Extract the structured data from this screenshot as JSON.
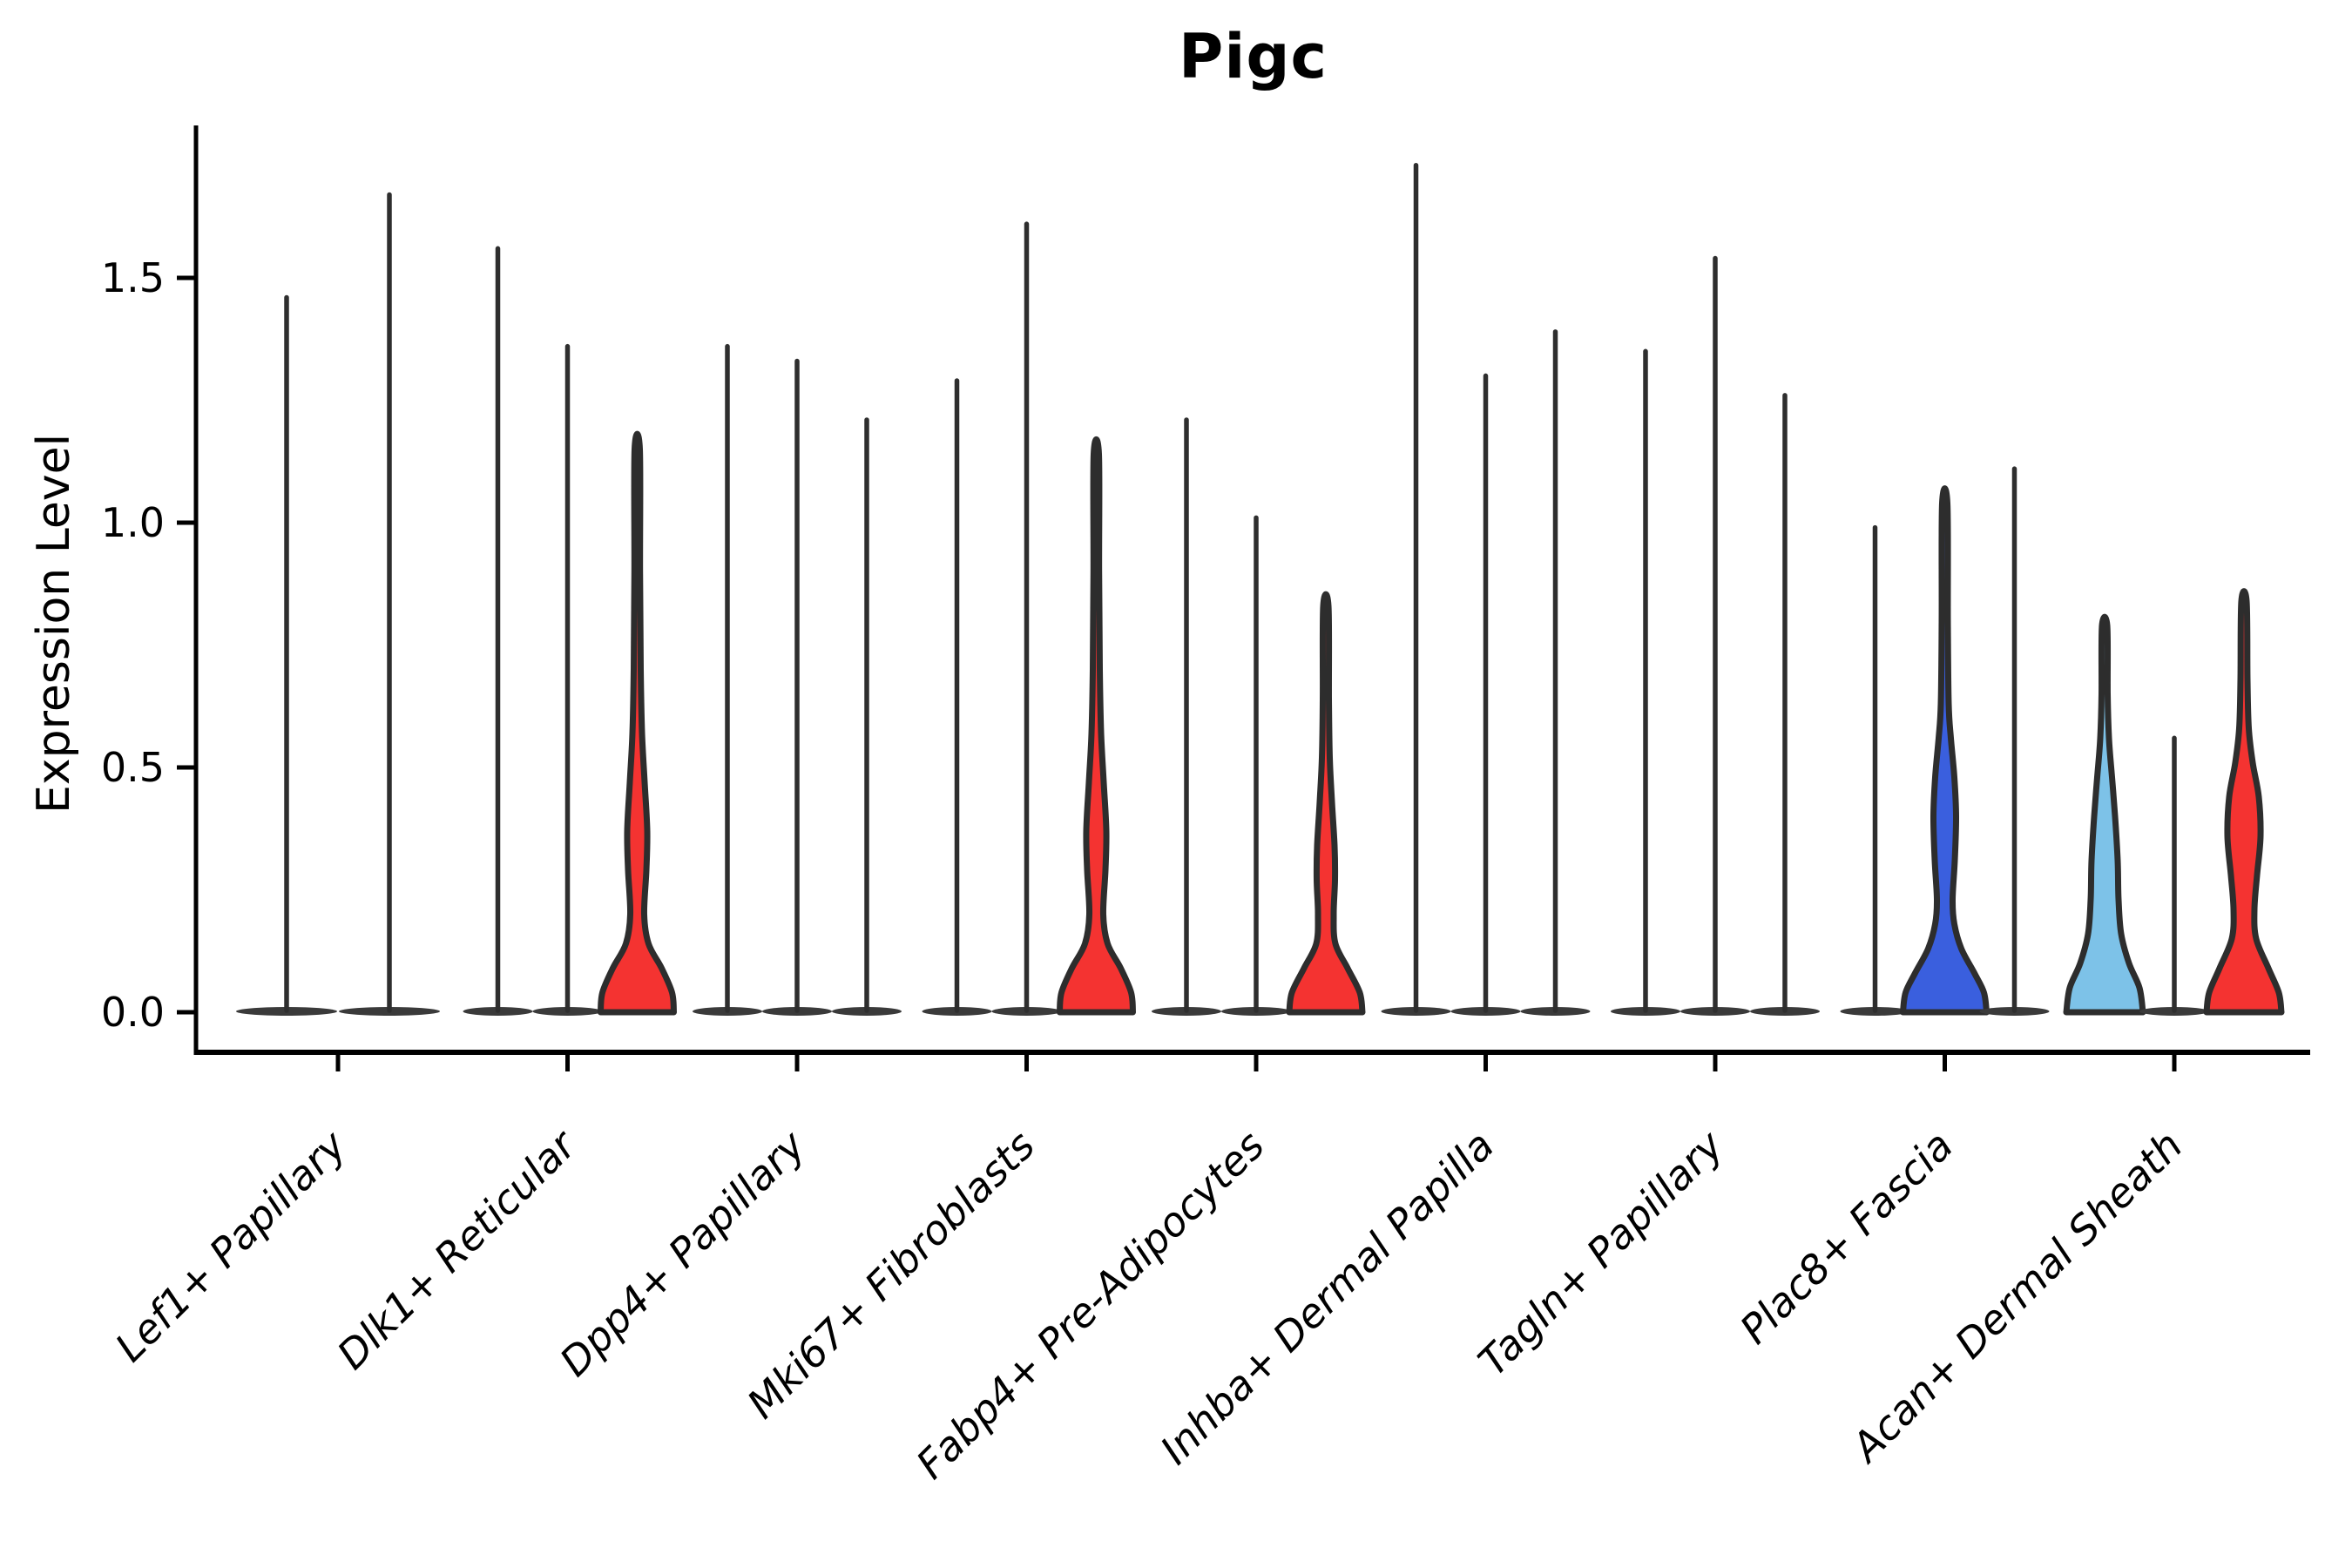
{
  "title": "Pigc",
  "y_axis": {
    "label": "Expression Level"
  },
  "chart_data": {
    "type": "violin",
    "title": "Pigc",
    "ylabel": "Expression Level",
    "xlabel": "",
    "grid": false,
    "legend": "none",
    "ylim": [
      -0.08,
      1.81
    ],
    "yticks": [
      {
        "value": 0.0,
        "label": "0.0"
      },
      {
        "value": 0.5,
        "label": "0.5"
      },
      {
        "value": 1.0,
        "label": "1.0"
      },
      {
        "value": 1.5,
        "label": "1.5"
      }
    ],
    "categories": [
      "Lef1+ Papillary",
      "Dlk1+ Reticular",
      "Dpp4+ Papillary",
      "Mki67+ Fibroblasts",
      "Fabp4+ Pre-Adipocytes",
      "Inhba+ Dermal Papilla",
      "Tagln+ Papillary",
      "Plac8+ Fascia",
      "Acan+ Dermal Sheath"
    ],
    "palette": {
      "spike": "#2E2E2E",
      "pancake": "#3A3A3A",
      "edge": "#2D2D2D",
      "red": "#F43331",
      "blue": "#3A5FDE",
      "light_blue": "#7DC2E8"
    },
    "groups": [
      {
        "category": "Lef1+ Papillary",
        "violins": [
          {
            "style": "spike",
            "max": 1.46
          },
          {
            "style": "spike",
            "max": 1.67
          }
        ]
      },
      {
        "category": "Dlk1+ Reticular",
        "violins": [
          {
            "style": "spike",
            "max": 1.56
          },
          {
            "style": "spike",
            "max": 1.36
          },
          {
            "style": "filled",
            "max": 1.15,
            "color": "red",
            "profile": [
              [
                0,
                42
              ],
              [
                0.04,
                40
              ],
              [
                0.09,
                28
              ],
              [
                0.14,
                13
              ],
              [
                0.2,
                8
              ],
              [
                0.29,
                10.5
              ],
              [
                0.37,
                11.5
              ],
              [
                0.47,
                8.5
              ],
              [
                0.57,
                5.5
              ],
              [
                0.7,
                4
              ],
              [
                0.9,
                3.2
              ],
              [
                1.15,
                3
              ]
            ]
          }
        ]
      },
      {
        "category": "Dpp4+ Papillary",
        "violins": [
          {
            "style": "spike",
            "max": 1.36
          },
          {
            "style": "spike",
            "max": 1.33
          },
          {
            "style": "spike",
            "max": 1.21
          }
        ]
      },
      {
        "category": "Mki67+ Fibroblasts",
        "violins": [
          {
            "style": "spike",
            "max": 1.29
          },
          {
            "style": "spike",
            "max": 1.61
          },
          {
            "style": "filled",
            "max": 1.14,
            "color": "red",
            "profile": [
              [
                0,
                42
              ],
              [
                0.04,
                40
              ],
              [
                0.09,
                28
              ],
              [
                0.14,
                13
              ],
              [
                0.2,
                8
              ],
              [
                0.29,
                10.5
              ],
              [
                0.37,
                11.5
              ],
              [
                0.47,
                8.5
              ],
              [
                0.57,
                5.5
              ],
              [
                0.7,
                4
              ],
              [
                0.9,
                3.2
              ],
              [
                1.14,
                3
              ]
            ]
          }
        ]
      },
      {
        "category": "Fabp4+ Pre-Adipocytes",
        "violins": [
          {
            "style": "spike",
            "max": 1.21
          },
          {
            "style": "spike",
            "max": 1.01
          },
          {
            "style": "filled",
            "max": 0.83,
            "color": "red",
            "profile": [
              [
                0,
                42
              ],
              [
                0.04,
                39
              ],
              [
                0.09,
                25
              ],
              [
                0.14,
                11
              ],
              [
                0.2,
                9
              ],
              [
                0.27,
                10.5
              ],
              [
                0.34,
                10
              ],
              [
                0.43,
                7
              ],
              [
                0.52,
                4.5
              ],
              [
                0.64,
                3.5
              ],
              [
                0.83,
                3
              ]
            ]
          }
        ]
      },
      {
        "category": "Inhba+ Dermal Papilla",
        "violins": [
          {
            "style": "spike",
            "max": 1.73
          },
          {
            "style": "spike",
            "max": 1.3
          },
          {
            "style": "spike",
            "max": 1.39
          }
        ]
      },
      {
        "category": "Tagln+ Papillary",
        "violins": [
          {
            "style": "spike",
            "max": 1.35
          },
          {
            "style": "spike",
            "max": 1.54
          },
          {
            "style": "spike",
            "max": 1.26
          }
        ]
      },
      {
        "category": "Plac8+ Fascia",
        "violins": [
          {
            "style": "spike",
            "max": 0.99
          },
          {
            "style": "filled",
            "max": 1.04,
            "color": "blue",
            "profile": [
              [
                0,
                48
              ],
              [
                0.04,
                45
              ],
              [
                0.08,
                34
              ],
              [
                0.13,
                19
              ],
              [
                0.18,
                11
              ],
              [
                0.23,
                9
              ],
              [
                0.31,
                11.5
              ],
              [
                0.4,
                13
              ],
              [
                0.48,
                11
              ],
              [
                0.56,
                7
              ],
              [
                0.63,
                4.5
              ],
              [
                0.8,
                3.5
              ],
              [
                1.04,
                3
              ]
            ]
          },
          {
            "style": "spike",
            "max": 1.11
          }
        ]
      },
      {
        "category": "Acan+ Dermal Sheath",
        "violins": [
          {
            "style": "filled",
            "max": 0.79,
            "color": "light_blue",
            "profile": [
              [
                0,
                44
              ],
              [
                0.05,
                40
              ],
              [
                0.1,
                28
              ],
              [
                0.16,
                19
              ],
              [
                0.23,
                16
              ],
              [
                0.31,
                15
              ],
              [
                0.4,
                12
              ],
              [
                0.48,
                8.5
              ],
              [
                0.56,
                5
              ],
              [
                0.65,
                3.5
              ],
              [
                0.79,
                3
              ]
            ]
          },
          {
            "style": "spike",
            "max": 0.56
          },
          {
            "style": "filled",
            "max": 0.84,
            "color": "red",
            "profile": [
              [
                0,
                43
              ],
              [
                0.04,
                40
              ],
              [
                0.09,
                28
              ],
              [
                0.15,
                14
              ],
              [
                0.21,
                12
              ],
              [
                0.28,
                15
              ],
              [
                0.36,
                19
              ],
              [
                0.44,
                17
              ],
              [
                0.51,
                10
              ],
              [
                0.58,
                5.5
              ],
              [
                0.68,
                4
              ],
              [
                0.84,
                3
              ]
            ]
          }
        ]
      }
    ]
  }
}
